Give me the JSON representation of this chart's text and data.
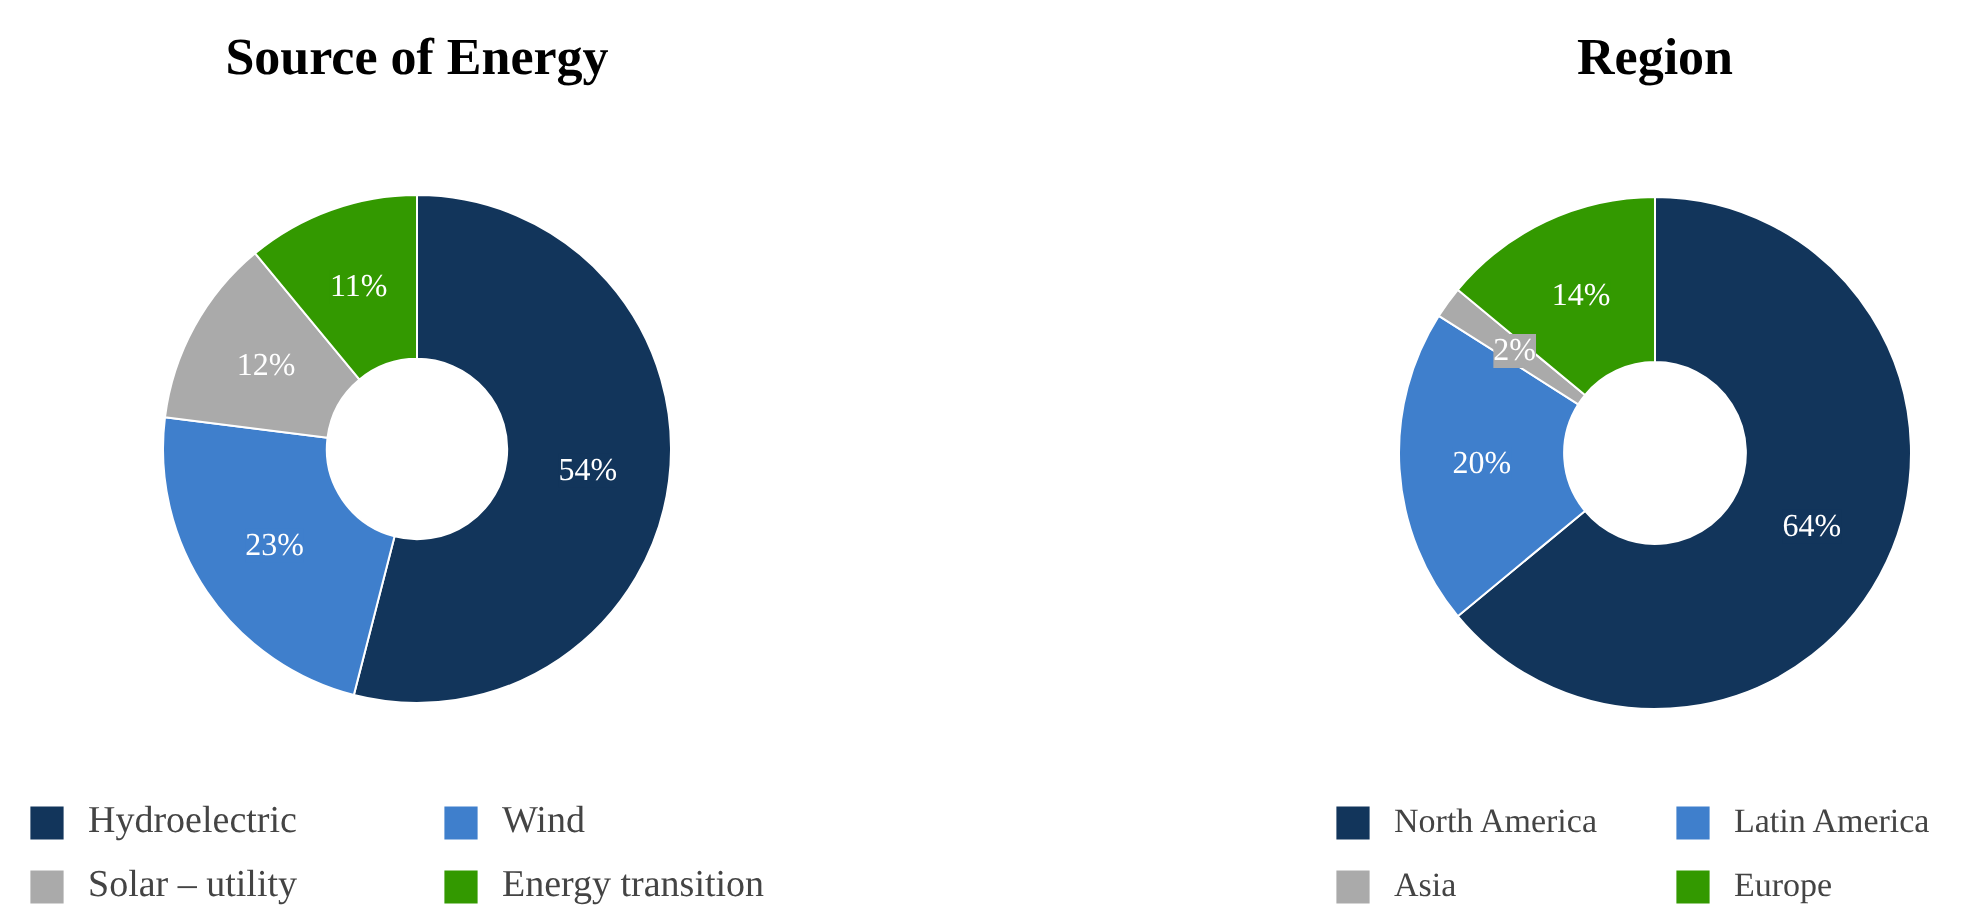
{
  "chart_data": [
    {
      "type": "donut",
      "title": "Source of Energy",
      "categories": [
        "Hydroelectric",
        "Wind",
        "Solar – utility",
        "Energy transition"
      ],
      "values": [
        54,
        23,
        12,
        11
      ],
      "colors": [
        "#12355b",
        "#3f7fcc",
        "#aaaaaa",
        "#339900"
      ],
      "value_labels": [
        "54%",
        "23%",
        "12%",
        "11%"
      ],
      "legend": "bottom"
    },
    {
      "type": "donut",
      "title": "Region",
      "categories": [
        "North America",
        "Latin America",
        "Asia",
        "Europe"
      ],
      "values": [
        64,
        20,
        2,
        14
      ],
      "colors": [
        "#12355b",
        "#3f7fcc",
        "#aaaaaa",
        "#339900"
      ],
      "value_labels": [
        "64%",
        "20%",
        "2%",
        "14%"
      ],
      "legend": "bottom"
    }
  ]
}
